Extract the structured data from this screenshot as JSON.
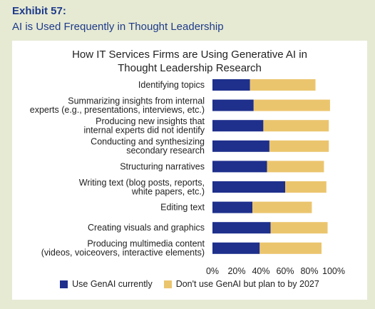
{
  "exhibit": {
    "label": "Exhibit 57:",
    "title": "AI is Used Frequently in Thought Leadership"
  },
  "colors": {
    "current": "#1e2f8c",
    "plan": "#ebc56e",
    "background": "#e6ead3",
    "header_text": "#1e3a8a"
  },
  "chart_data": {
    "type": "bar",
    "orientation": "horizontal",
    "stacked": true,
    "title_lines": [
      "How IT Services Firms are Using Generative AI in",
      "Thought Leadership Research"
    ],
    "categories": [
      [
        "Identifying topics"
      ],
      [
        "Summarizing insights from internal",
        "experts (e.g., presentations, interviews, etc.)"
      ],
      [
        "Producing new insights that",
        "internal experts did not identify"
      ],
      [
        "Conducting and synthesizing",
        "secondary research"
      ],
      [
        "Structuring narratives"
      ],
      [
        "Writing text (blog posts, reports,",
        "white papers, etc.)"
      ],
      [
        "Editing text"
      ],
      [
        "Creating visuals and graphics"
      ],
      [
        "Producing multimedia content",
        "(videos, voiceovers, interactive elements)"
      ]
    ],
    "series": [
      {
        "name": "Use GenAI currently",
        "values": [
          31,
          34,
          42,
          47,
          45,
          60,
          33,
          48,
          39
        ]
      },
      {
        "name": "Don't use GenAI but plan to by 2027",
        "values": [
          54,
          63,
          54,
          49,
          47,
          34,
          49,
          47,
          51
        ]
      }
    ],
    "xlim": [
      0,
      100
    ],
    "xticks": [
      "0%",
      "20%",
      "40%",
      "60%",
      "80%",
      "100%"
    ],
    "legend_position": "bottom"
  }
}
